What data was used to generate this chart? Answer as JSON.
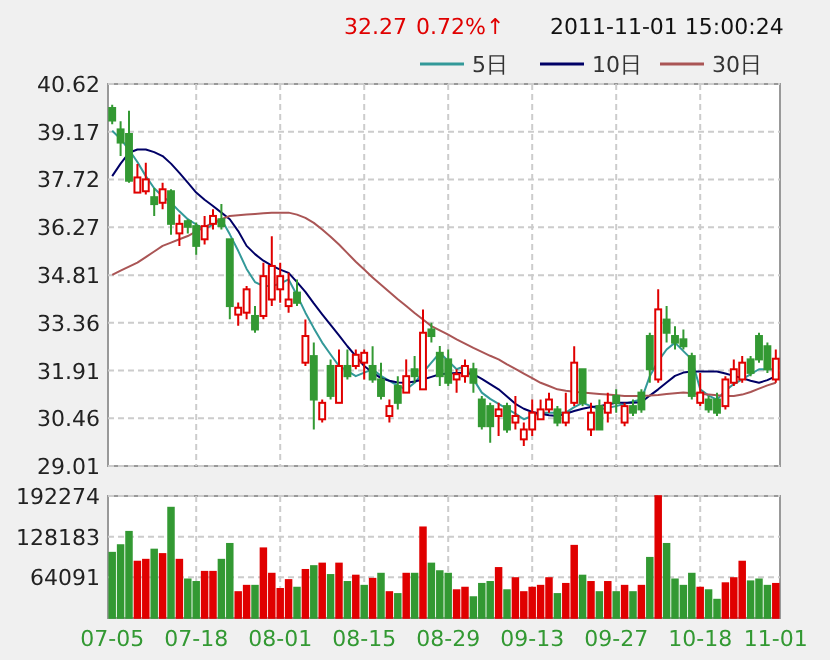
{
  "chart_data": [
    {
      "type": "candlestick",
      "annotations": [
        "32.27",
        "0.72%↑",
        "2011-11-01 15:00:24"
      ],
      "categories": [
        null,
        null,
        null,
        null,
        null,
        null,
        null,
        null,
        null,
        null,
        null,
        null,
        null,
        null,
        null,
        null,
        null,
        null,
        null,
        null,
        null,
        null,
        null,
        null,
        null,
        null,
        null,
        null,
        null,
        null,
        null,
        null,
        null,
        null,
        null,
        null,
        null,
        null,
        null,
        null,
        null,
        null,
        null,
        null,
        null,
        null,
        null,
        null,
        null,
        null,
        null,
        null,
        null,
        null,
        null,
        null,
        null,
        null,
        null,
        null,
        null,
        null,
        null,
        null,
        null,
        null,
        null,
        null,
        null,
        null,
        null,
        null,
        null,
        null,
        null,
        null,
        null,
        null,
        null,
        null
      ],
      "tick_labels": "y",
      "ohlc": [
        [
          39.89,
          39.99,
          39.4,
          39.51
        ],
        [
          39.24,
          39.49,
          38.43,
          38.84
        ],
        [
          39.1,
          39.81,
          37.62,
          37.68
        ],
        [
          37.32,
          38.19,
          37.32,
          37.78
        ],
        [
          37.36,
          38.23,
          37.26,
          37.72
        ],
        [
          37.18,
          37.46,
          36.61,
          36.97
        ],
        [
          37.01,
          37.62,
          36.81,
          37.42
        ],
        [
          37.36,
          37.42,
          36.04,
          36.37
        ],
        [
          36.08,
          36.65,
          35.7,
          36.37
        ],
        [
          36.45,
          36.51,
          36.08,
          36.28
        ],
        [
          36.3,
          36.41,
          35.43,
          35.7
        ],
        [
          35.9,
          36.61,
          35.74,
          36.3
        ],
        [
          36.37,
          36.81,
          36.2,
          36.61
        ],
        [
          36.51,
          36.97,
          36.2,
          36.3
        ],
        [
          35.9,
          35.9,
          33.47,
          33.87
        ],
        [
          33.61,
          33.98,
          33.27,
          33.82
        ],
        [
          33.67,
          34.48,
          33.47,
          34.38
        ],
        [
          33.57,
          33.87,
          33.06,
          33.16
        ],
        [
          33.57,
          35.19,
          33.47,
          34.78
        ],
        [
          34.07,
          35.99,
          33.87,
          35.09
        ],
        [
          34.38,
          35.19,
          33.97,
          34.78
        ],
        [
          33.87,
          34.88,
          33.67,
          34.07
        ],
        [
          34.28,
          34.68,
          33.87,
          33.97
        ],
        [
          32.15,
          33.46,
          32.05,
          32.96
        ],
        [
          32.35,
          32.76,
          30.12,
          31.03
        ],
        [
          30.43,
          31.03,
          30.33,
          30.93
        ],
        [
          32.05,
          32.25,
          31.03,
          31.14
        ],
        [
          30.93,
          32.55,
          30.93,
          32.05
        ],
        [
          32.05,
          32.55,
          31.64,
          31.74
        ],
        [
          32.05,
          32.55,
          31.95,
          32.39
        ],
        [
          32.15,
          32.55,
          31.64,
          32.45
        ],
        [
          32.05,
          32.65,
          31.54,
          31.64
        ],
        [
          31.64,
          32.15,
          31.03,
          31.14
        ],
        [
          30.53,
          31.03,
          30.33,
          30.83
        ],
        [
          31.44,
          31.74,
          30.73,
          30.93
        ],
        [
          31.24,
          32.25,
          31.24,
          31.74
        ],
        [
          31.95,
          32.35,
          31.54,
          31.74
        ],
        [
          31.34,
          33.77,
          31.34,
          33.06
        ],
        [
          33.16,
          33.36,
          32.76,
          32.96
        ],
        [
          32.45,
          32.66,
          31.44,
          31.74
        ],
        [
          32.25,
          32.55,
          31.44,
          31.54
        ],
        [
          31.64,
          31.95,
          31.24,
          31.8
        ],
        [
          31.74,
          32.25,
          31.54,
          32.05
        ],
        [
          31.95,
          32.15,
          31.24,
          31.54
        ],
        [
          31.03,
          31.14,
          30.12,
          30.22
        ],
        [
          30.83,
          30.93,
          29.72,
          30.22
        ],
        [
          30.53,
          30.93,
          29.92,
          30.73
        ],
        [
          30.83,
          30.93,
          30.02,
          30.12
        ],
        [
          30.33,
          31.14,
          30.12,
          30.53
        ],
        [
          29.82,
          30.33,
          29.62,
          30.12
        ],
        [
          30.12,
          31.03,
          29.92,
          30.63
        ],
        [
          30.43,
          31.03,
          30.43,
          30.73
        ],
        [
          30.73,
          31.24,
          30.63,
          31.03
        ],
        [
          30.73,
          30.83,
          30.22,
          30.33
        ],
        [
          30.33,
          31.24,
          30.22,
          30.63
        ],
        [
          30.93,
          32.65,
          30.83,
          32.15
        ],
        [
          31.95,
          31.95,
          30.83,
          30.93
        ],
        [
          30.12,
          30.93,
          29.92,
          30.63
        ],
        [
          30.83,
          31.03,
          30.12,
          30.12
        ],
        [
          30.63,
          31.24,
          30.33,
          30.93
        ],
        [
          31.14,
          31.34,
          30.63,
          30.93
        ],
        [
          30.33,
          30.93,
          30.22,
          30.83
        ],
        [
          30.83,
          31.03,
          30.53,
          30.63
        ],
        [
          31.24,
          31.34,
          30.63,
          30.73
        ],
        [
          32.96,
          33.06,
          31.54,
          31.95
        ],
        [
          31.64,
          34.38,
          31.54,
          33.77
        ],
        [
          33.46,
          33.87,
          32.76,
          33.06
        ],
        [
          32.96,
          33.26,
          32.55,
          32.76
        ],
        [
          32.86,
          33.16,
          32.55,
          32.65
        ],
        [
          32.35,
          32.45,
          31.03,
          31.14
        ],
        [
          30.93,
          31.84,
          30.83,
          31.24
        ],
        [
          31.03,
          31.14,
          30.63,
          30.73
        ],
        [
          31.03,
          31.24,
          30.53,
          30.63
        ],
        [
          30.83,
          31.74,
          30.73,
          31.64
        ],
        [
          31.54,
          32.25,
          31.44,
          31.95
        ],
        [
          31.64,
          32.35,
          31.54,
          32.15
        ],
        [
          32.25,
          32.35,
          31.74,
          31.84
        ],
        [
          32.96,
          33.06,
          32.15,
          32.25
        ],
        [
          32.65,
          32.76,
          31.84,
          31.95
        ],
        [
          31.64,
          32.55,
          31.54,
          32.27
        ]
      ],
      "colors": [
        "#339933",
        "#339933",
        "#339933",
        "#e00000",
        "#e00000",
        "#339933",
        "#e00000",
        "#339933",
        "#e00000",
        "#339933",
        "#339933",
        "#e00000",
        "#e00000",
        "#339933",
        "#339933",
        "#e00000",
        "#e00000",
        "#339933",
        "#e00000",
        "#e00000",
        "#e00000",
        "#e00000",
        "#339933",
        "#e00000",
        "#339933",
        "#e00000",
        "#339933",
        "#e00000",
        "#339933",
        "#e00000",
        "#e00000",
        "#339933",
        "#339933",
        "#e00000",
        "#339933",
        "#e00000",
        "#339933",
        "#e00000",
        "#339933",
        "#339933",
        "#339933",
        "#e00000",
        "#e00000",
        "#339933",
        "#339933",
        "#339933",
        "#e00000",
        "#339933",
        "#e00000",
        "#e00000",
        "#e00000",
        "#e00000",
        "#e00000",
        "#339933",
        "#e00000",
        "#e00000",
        "#339933",
        "#e00000",
        "#339933",
        "#e00000",
        "#339933",
        "#e00000",
        "#339933",
        "#339933",
        "#339933",
        "#e00000",
        "#339933",
        "#339933",
        "#339933",
        "#339933",
        "#e00000",
        "#339933",
        "#339933",
        "#e00000",
        "#e00000",
        "#e00000",
        "#339933",
        "#339933",
        "#339933",
        "#e00000"
      ],
      "series": [
        {
          "name": "5日",
          "type": "line",
          "color": "#339999",
          "values": [
            39.2,
            38.95,
            38.62,
            38.25,
            37.82,
            37.45,
            37.2,
            37.01,
            36.75,
            36.51,
            36.35,
            36.2,
            36.35,
            36.51,
            36.05,
            35.55,
            35.0,
            34.6,
            34.48,
            34.48,
            34.55,
            34.68,
            34.2,
            33.67,
            33.2,
            32.76,
            32.4,
            32.05,
            31.9,
            31.74,
            31.85,
            31.95,
            31.75,
            31.6,
            31.45,
            31.34,
            31.54,
            31.85,
            32.15,
            32.45,
            32.2,
            31.95,
            32.05,
            31.65,
            31.24,
            31.05,
            30.9,
            30.75,
            30.6,
            30.43,
            30.53,
            30.63,
            30.63,
            30.63,
            30.63,
            30.8,
            30.93,
            30.83,
            30.73,
            30.78,
            30.83,
            30.9,
            30.97,
            31.03,
            31.74,
            32.2,
            32.55,
            32.76,
            32.5,
            32.25,
            31.34,
            31.15,
            31.03,
            31.3,
            31.5,
            31.64,
            31.8,
            31.95,
            31.95,
            31.95
          ]
        },
        {
          "name": "10日",
          "type": "line",
          "color": "#000066",
          "values": [
            37.82,
            38.2,
            38.53,
            38.63,
            38.63,
            38.55,
            38.43,
            38.2,
            37.92,
            37.62,
            37.32,
            37.1,
            36.91,
            36.71,
            36.51,
            36.15,
            35.7,
            35.45,
            35.25,
            35.1,
            34.98,
            34.88,
            34.6,
            34.3,
            33.95,
            33.62,
            33.3,
            32.98,
            32.65,
            32.35,
            32.05,
            31.85,
            31.68,
            31.6,
            31.55,
            31.54,
            31.58,
            31.64,
            31.72,
            31.8,
            31.82,
            31.84,
            31.84,
            31.8,
            31.66,
            31.5,
            31.34,
            31.12,
            30.9,
            30.75,
            30.65,
            30.6,
            30.55,
            30.53,
            30.6,
            30.68,
            30.75,
            30.8,
            30.83,
            30.88,
            30.93,
            30.93,
            30.93,
            30.95,
            31.15,
            31.34,
            31.55,
            31.75,
            31.85,
            31.88,
            31.88,
            31.88,
            31.88,
            31.82,
            31.75,
            31.68,
            31.6,
            31.54,
            31.62,
            31.74
          ]
        },
        {
          "name": "30日",
          "type": "line",
          "color": "#aa5555",
          "values": [
            34.82,
            34.95,
            35.07,
            35.19,
            35.36,
            35.53,
            35.7,
            35.8,
            35.9,
            36.0,
            36.14,
            36.27,
            36.41,
            36.51,
            36.61,
            36.63,
            36.65,
            36.67,
            36.69,
            36.71,
            36.71,
            36.71,
            36.65,
            36.55,
            36.4,
            36.2,
            35.98,
            35.74,
            35.48,
            35.22,
            34.98,
            34.74,
            34.52,
            34.3,
            34.08,
            33.87,
            33.66,
            33.46,
            33.26,
            33.13,
            33.0,
            32.86,
            32.73,
            32.6,
            32.48,
            32.36,
            32.25,
            32.1,
            31.96,
            31.82,
            31.68,
            31.54,
            31.44,
            31.34,
            31.3,
            31.27,
            31.24,
            31.22,
            31.2,
            31.18,
            31.16,
            31.14,
            31.14,
            31.14,
            31.15,
            31.17,
            31.2,
            31.22,
            31.24,
            31.22,
            31.2,
            31.18,
            31.16,
            31.14,
            31.14,
            31.18,
            31.26,
            31.36,
            31.46,
            31.54
          ]
        }
      ],
      "ylim": [
        29.01,
        40.62
      ],
      "yticks": [
        29.01,
        30.46,
        31.91,
        33.36,
        34.81,
        36.27,
        37.72,
        39.17,
        40.62
      ],
      "grid": true,
      "legend": "top right"
    },
    {
      "type": "bar",
      "categories": [
        "07-05",
        null,
        null,
        null,
        null,
        null,
        null,
        null,
        null,
        null,
        "07-18",
        null,
        null,
        null,
        null,
        null,
        null,
        null,
        null,
        null,
        "08-01",
        null,
        null,
        null,
        null,
        null,
        null,
        null,
        null,
        null,
        "08-15",
        null,
        null,
        null,
        null,
        null,
        null,
        null,
        null,
        null,
        "08-29",
        null,
        null,
        null,
        null,
        null,
        null,
        null,
        null,
        null,
        "09-13",
        null,
        null,
        null,
        null,
        null,
        null,
        null,
        null,
        null,
        "09-27",
        null,
        null,
        null,
        null,
        null,
        null,
        null,
        null,
        null,
        "10-18",
        null,
        null,
        null,
        null,
        null,
        null,
        null,
        null,
        "11-01"
      ],
      "values": [
        103000,
        115000,
        136000,
        89000,
        92000,
        108000,
        101000,
        174000,
        92000,
        61000,
        57000,
        73000,
        73000,
        92000,
        117000,
        41000,
        51000,
        51000,
        110000,
        70000,
        46000,
        60000,
        48000,
        76000,
        82000,
        86000,
        68000,
        86000,
        57000,
        67000,
        51000,
        62000,
        70000,
        41000,
        38000,
        70000,
        70000,
        143000,
        86000,
        74000,
        70000,
        44000,
        48000,
        33000,
        54000,
        57000,
        79000,
        44000,
        63000,
        41000,
        48000,
        51000,
        63000,
        38000,
        54000,
        114000,
        67000,
        57000,
        41000,
        57000,
        41000,
        51000,
        41000,
        51000,
        95000,
        192274,
        117000,
        61000,
        51000,
        70000,
        48000,
        44000,
        29000,
        55000,
        63000,
        89000,
        58000,
        61000,
        51000,
        54000
      ],
      "colors": [
        "#339933",
        "#339933",
        "#339933",
        "#e00000",
        "#e00000",
        "#339933",
        "#e00000",
        "#339933",
        "#e00000",
        "#339933",
        "#339933",
        "#e00000",
        "#e00000",
        "#339933",
        "#339933",
        "#e00000",
        "#e00000",
        "#339933",
        "#e00000",
        "#e00000",
        "#e00000",
        "#e00000",
        "#339933",
        "#e00000",
        "#339933",
        "#e00000",
        "#339933",
        "#e00000",
        "#339933",
        "#e00000",
        "#339933",
        "#e00000",
        "#339933",
        "#e00000",
        "#339933",
        "#e00000",
        "#339933",
        "#e00000",
        "#339933",
        "#339933",
        "#339933",
        "#e00000",
        "#e00000",
        "#339933",
        "#339933",
        "#339933",
        "#e00000",
        "#339933",
        "#e00000",
        "#e00000",
        "#e00000",
        "#e00000",
        "#e00000",
        "#339933",
        "#e00000",
        "#e00000",
        "#339933",
        "#e00000",
        "#339933",
        "#e00000",
        "#339933",
        "#e00000",
        "#339933",
        "#e00000",
        "#339933",
        "#e00000",
        "#339933",
        "#339933",
        "#339933",
        "#339933",
        "#e00000",
        "#339933",
        "#339933",
        "#e00000",
        "#e00000",
        "#e00000",
        "#339933",
        "#339933",
        "#339933",
        "#e00000"
      ],
      "ylim": [
        0,
        192274
      ],
      "yticks": [
        64091,
        128183,
        192274
      ],
      "grid": true
    }
  ]
}
